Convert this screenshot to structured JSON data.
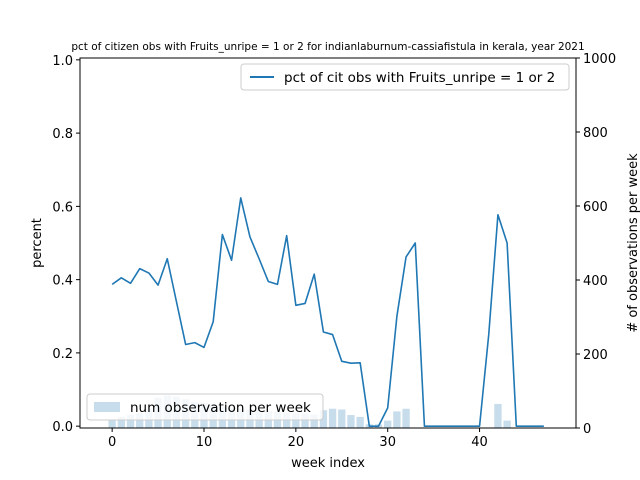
{
  "chart_data": {
    "type": "line",
    "title": "pct of citizen obs with Fruits_unripe = 1 or 2 for indianlaburnum-cassiafistula in kerala, year 2021",
    "xlabel": "week index",
    "ylabel": "percent",
    "y2label": "# of observations per week",
    "xlim": [
      -3.5,
      50.5
    ],
    "ylim": [
      -0.005,
      1.005
    ],
    "y2lim": [
      0,
      1000
    ],
    "xticks": [
      0,
      10,
      20,
      30,
      40
    ],
    "yticks": [
      0.0,
      0.2,
      0.4,
      0.6,
      0.8,
      1.0
    ],
    "y2ticks": [
      0,
      200,
      400,
      600,
      800,
      1000
    ],
    "grid": false,
    "line_series": {
      "name": "pct of cit obs with Fruits_unripe = 1 or 2",
      "color": "#1f77b4",
      "x": [
        0,
        1,
        2,
        3,
        4,
        5,
        6,
        7,
        8,
        9,
        10,
        11,
        12,
        13,
        14,
        15,
        16,
        17,
        18,
        19,
        20,
        21,
        22,
        23,
        24,
        25,
        26,
        27,
        28,
        29,
        30,
        31,
        32,
        33,
        34,
        35,
        36,
        37,
        38,
        39,
        40,
        41,
        42,
        43,
        44,
        45,
        46,
        47
      ],
      "y": [
        0.387,
        0.405,
        0.39,
        0.43,
        0.418,
        0.385,
        0.457,
        0.34,
        0.223,
        0.228,
        0.215,
        0.285,
        0.523,
        0.453,
        0.623,
        0.517,
        0.457,
        0.395,
        0.387,
        0.52,
        0.33,
        0.335,
        0.415,
        0.257,
        0.25,
        0.177,
        0.172,
        0.173,
        0.0,
        0.0,
        0.05,
        0.3,
        0.462,
        0.5,
        0.0,
        0.0,
        0.0,
        0.0,
        0.0,
        0.0,
        0.0,
        0.25,
        0.577,
        0.5,
        0.0,
        0.0,
        0.0,
        0.0
      ]
    },
    "bar_series": {
      "name": "num observation per week",
      "color": "#1f77b4",
      "opacity": 0.25,
      "x": [
        0,
        1,
        2,
        3,
        4,
        5,
        6,
        7,
        8,
        9,
        10,
        11,
        12,
        13,
        14,
        15,
        16,
        17,
        18,
        19,
        20,
        21,
        22,
        23,
        24,
        25,
        26,
        27,
        28,
        29,
        30,
        31,
        32,
        33,
        34,
        35,
        36,
        37,
        38,
        39,
        40,
        41,
        42,
        43,
        44,
        45,
        46,
        47
      ],
      "values": [
        22,
        30,
        35,
        40,
        50,
        82,
        88,
        85,
        78,
        70,
        68,
        62,
        58,
        55,
        52,
        50,
        48,
        46,
        44,
        42,
        40,
        38,
        36,
        48,
        52,
        50,
        35,
        30,
        10,
        10,
        20,
        45,
        52,
        0,
        0,
        0,
        0,
        0,
        0,
        0,
        0,
        0,
        65,
        20,
        0,
        0,
        0,
        0
      ]
    },
    "legend_line_placement": "top-right",
    "legend_bar_placement": "bottom-left"
  }
}
